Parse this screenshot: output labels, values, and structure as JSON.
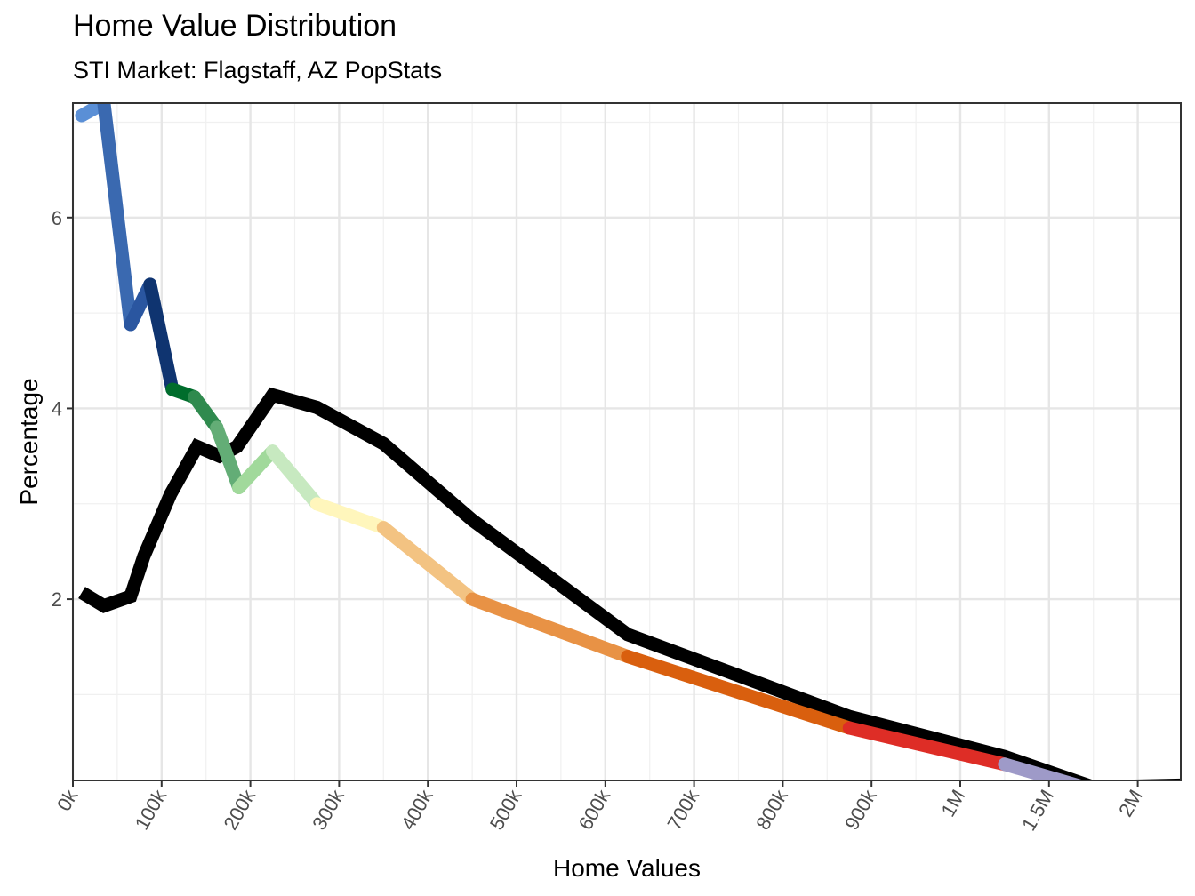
{
  "chart_data": {
    "type": "line",
    "title": "Home Value Distribution",
    "subtitle": "STI Market: Flagstaff, AZ PopStats",
    "xlabel": "Home Values",
    "ylabel": "Percentage",
    "x_tick_labels": [
      "0k",
      "100k",
      "200k",
      "300k",
      "400k",
      "500k",
      "600k",
      "700k",
      "800k",
      "900k",
      "1M",
      "1.5M",
      "2M"
    ],
    "y_tick_labels": [
      "2",
      "4",
      "6"
    ],
    "y_ticks": [
      2,
      4,
      6
    ],
    "ylim": [
      0.1,
      7.2
    ],
    "grid": true,
    "series": [
      {
        "color": "#000000",
        "points": [
          {
            "x": "10k",
            "y": 2.07
          },
          {
            "x": "35k",
            "y": 1.93
          },
          {
            "x": "65k",
            "y": 2.03
          },
          {
            "x": "80k",
            "y": 2.45
          },
          {
            "x": "110k",
            "y": 3.1
          },
          {
            "x": "140k",
            "y": 3.6
          },
          {
            "x": "165k",
            "y": 3.5
          },
          {
            "x": "185k",
            "y": 3.6
          },
          {
            "x": "225k",
            "y": 4.14
          },
          {
            "x": "275k",
            "y": 4.01
          },
          {
            "x": "350k",
            "y": 3.63
          },
          {
            "x": "450k",
            "y": 2.83
          },
          {
            "x": "625k",
            "y": 1.63
          },
          {
            "x": "875k",
            "y": 0.77
          },
          {
            "x": "1.25M",
            "y": 0.35
          },
          {
            "x": "1.75M",
            "y": 0.03
          },
          {
            "x": "2.25M",
            "y": 0.05
          }
        ]
      },
      {
        "segments": [
          {
            "color": "#5a8fd6",
            "points": [
              {
                "x": "10k",
                "y": 7.07
              },
              {
                "x": "35k",
                "y": 7.2
              }
            ]
          },
          {
            "color": "#3a69b0",
            "points": [
              {
                "x": "35k",
                "y": 7.2
              },
              {
                "x": "65k",
                "y": 4.88
              }
            ]
          },
          {
            "color": "#2a56a0",
            "points": [
              {
                "x": "65k",
                "y": 4.88
              },
              {
                "x": "87k",
                "y": 5.3
              }
            ]
          },
          {
            "color": "#0f3470",
            "points": [
              {
                "x": "87k",
                "y": 5.3
              },
              {
                "x": "112k",
                "y": 4.2
              }
            ]
          },
          {
            "color": "#006d2c",
            "points": [
              {
                "x": "112k",
                "y": 4.2
              },
              {
                "x": "137k",
                "y": 4.12
              }
            ]
          },
          {
            "color": "#2f8a4e",
            "points": [
              {
                "x": "137k",
                "y": 4.12
              },
              {
                "x": "162k",
                "y": 3.8
              }
            ]
          },
          {
            "color": "#63ad76",
            "points": [
              {
                "x": "162k",
                "y": 3.8
              },
              {
                "x": "187k",
                "y": 3.17
              }
            ]
          },
          {
            "color": "#a1d99b",
            "points": [
              {
                "x": "187k",
                "y": 3.17
              },
              {
                "x": "225k",
                "y": 3.55
              }
            ]
          },
          {
            "color": "#c7e9c0",
            "points": [
              {
                "x": "225k",
                "y": 3.55
              },
              {
                "x": "275k",
                "y": 3.0
              }
            ]
          },
          {
            "color": "#fff6bc",
            "points": [
              {
                "x": "275k",
                "y": 3.0
              },
              {
                "x": "350k",
                "y": 2.75
              }
            ]
          },
          {
            "color": "#f3c382",
            "points": [
              {
                "x": "350k",
                "y": 2.75
              },
              {
                "x": "450k",
                "y": 2.0
              }
            ]
          },
          {
            "color": "#e89245",
            "points": [
              {
                "x": "450k",
                "y": 2.0
              },
              {
                "x": "625k",
                "y": 1.4
              }
            ]
          },
          {
            "color": "#d95f0e",
            "points": [
              {
                "x": "625k",
                "y": 1.4
              },
              {
                "x": "875k",
                "y": 0.65
              }
            ]
          },
          {
            "color": "#de2d26",
            "points": [
              {
                "x": "875k",
                "y": 0.65
              },
              {
                "x": "1.25M",
                "y": 0.27
              }
            ]
          },
          {
            "color": "#9e9ac8",
            "points": [
              {
                "x": "1.25M",
                "y": 0.27
              },
              {
                "x": "1.75M",
                "y": 0.0
              }
            ]
          },
          {
            "color": "#6a51a3",
            "points": [
              {
                "x": "1.75M",
                "y": 0.0
              },
              {
                "x": "2.25M",
                "y": 0.0
              }
            ]
          }
        ]
      }
    ]
  }
}
